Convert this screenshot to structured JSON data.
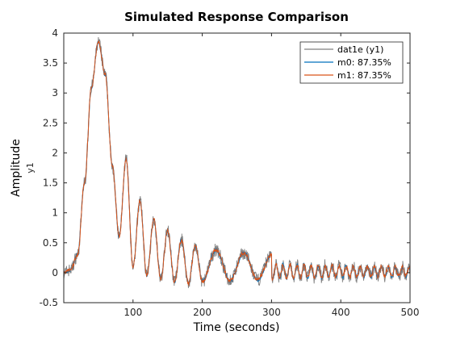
{
  "chart_data": {
    "type": "line",
    "title": "Simulated Response Comparison",
    "xlabel": "Time (seconds)",
    "ylabel": "Amplitude",
    "channel_label": "y1",
    "xlim": [
      0,
      500
    ],
    "ylim": [
      -0.5,
      4
    ],
    "xticks": [
      100,
      200,
      300,
      400,
      500
    ],
    "yticks": [
      -0.5,
      0,
      0.5,
      1,
      1.5,
      2,
      2.5,
      3,
      3.5,
      4
    ],
    "grid": false,
    "legend_position": "top-right",
    "series": [
      {
        "name": "dat1e (y1)",
        "color": "#808080",
        "style": "noisy-measured"
      },
      {
        "name": "m0: 87.35%",
        "color": "#0072BD",
        "style": "simulated"
      },
      {
        "name": "m1: 87.35%",
        "color": "#D95319",
        "style": "simulated"
      }
    ],
    "response": {
      "t": [
        0,
        10,
        20,
        30,
        40,
        50,
        60,
        70,
        80,
        90,
        100,
        110,
        120,
        130,
        140,
        150,
        160,
        170,
        180,
        190,
        200,
        220,
        240,
        260,
        280,
        300,
        350,
        400,
        450,
        500
      ],
      "envelope": [
        0.0,
        0.05,
        0.3,
        1.5,
        3.1,
        3.85,
        3.3,
        1.8,
        0.6,
        1.9,
        0.1,
        1.2,
        -0.05,
        0.9,
        -0.1,
        0.7,
        -0.15,
        0.55,
        -0.18,
        0.45,
        -0.15,
        0.38,
        -0.13,
        0.33,
        -0.12,
        0.3,
        0.22,
        0.18,
        0.15,
        0.12
      ]
    }
  }
}
